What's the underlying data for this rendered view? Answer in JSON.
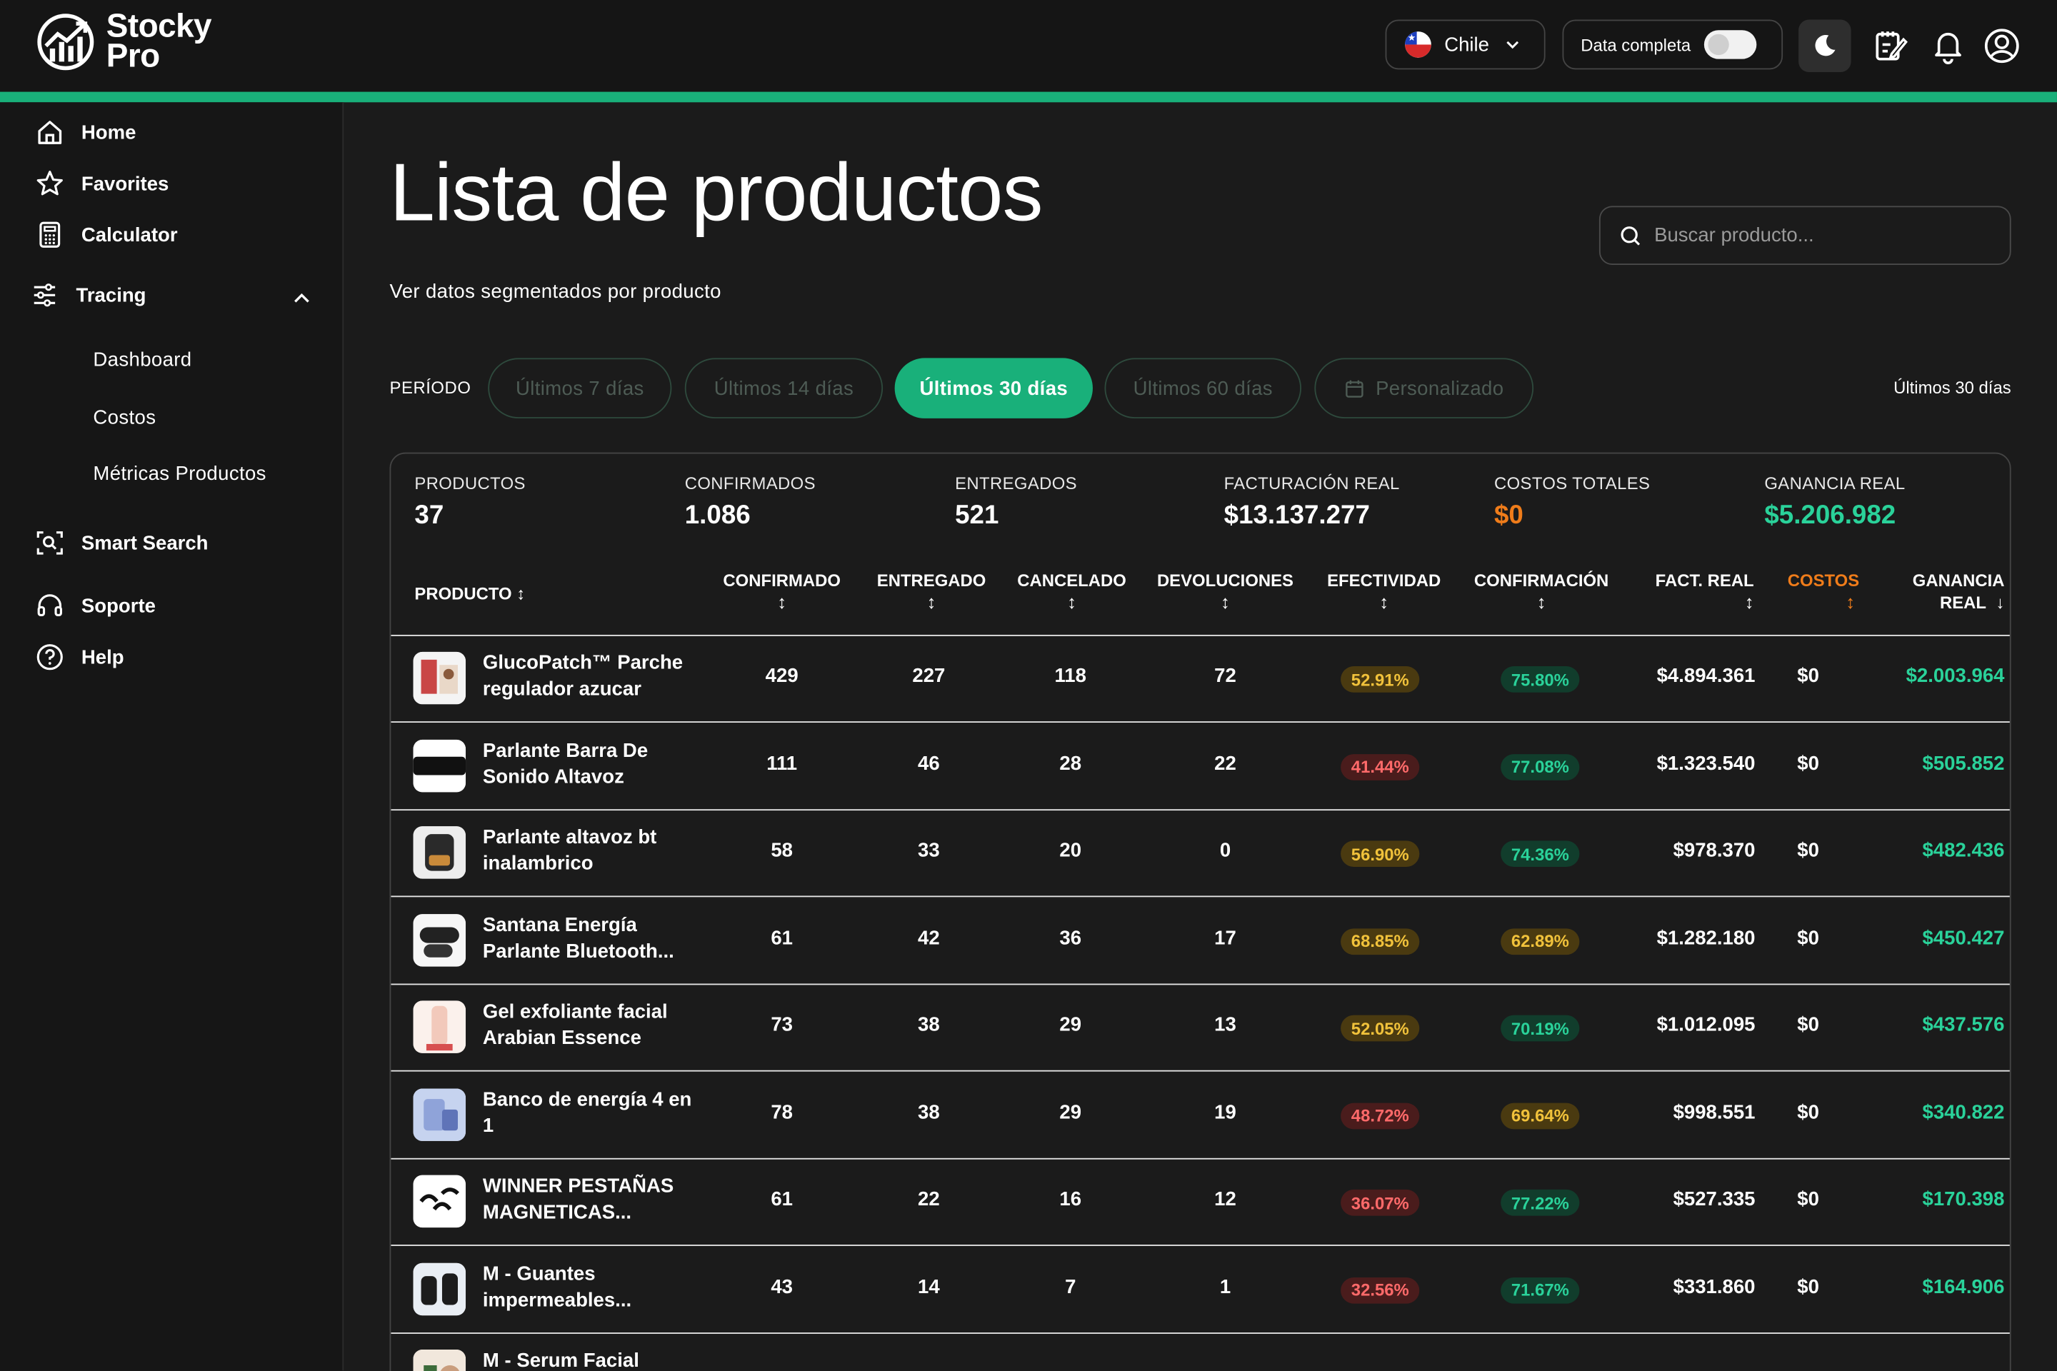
{
  "brand": {
    "line1": "Stocky",
    "line2": "Pro"
  },
  "topbar": {
    "country": "Chile",
    "data_toggle_label": "Data completa"
  },
  "sidebar": {
    "home": "Home",
    "favorites": "Favorites",
    "calculator": "Calculator",
    "tracing": "Tracing",
    "tracing_items": [
      "Dashboard",
      "Costos",
      "Métricas Productos"
    ],
    "smart_search": "Smart Search",
    "support": "Soporte",
    "help": "Help"
  },
  "main": {
    "title": "Lista de productos",
    "subtitle": "Ver datos segmentados por producto",
    "search_placeholder": "Buscar producto...",
    "period_label": "PERÍODO",
    "periods": [
      "Últimos 7 días",
      "Últimos 14 días",
      "Últimos 30 días",
      "Últimos 60 días",
      "Personalizado"
    ],
    "active_period": "Últimos 30 días",
    "period_right": "Últimos 30 días"
  },
  "stats": [
    {
      "label": "PRODUCTOS",
      "value": "37"
    },
    {
      "label": "CONFIRMADOS",
      "value": "1.086"
    },
    {
      "label": "ENTREGADOS",
      "value": "521"
    },
    {
      "label": "FACTURACIÓN REAL",
      "value": "$13.137.277"
    },
    {
      "label": "COSTOS TOTALES",
      "value": "$0"
    },
    {
      "label": "GANANCIA REAL",
      "value": "$5.206.982"
    }
  ],
  "table": {
    "headers": {
      "producto": "PRODUCTO",
      "confirmado": "CONFIRMADO",
      "entregado": "ENTREGADO",
      "cancelado": "CANCELADO",
      "devoluciones": "DEVOLUCIONES",
      "efectividad": "EFECTIVIDAD",
      "confirmacion": "CONFIRMACIÓN",
      "fact_real": "FACT. REAL",
      "costos": "COSTOS",
      "ganancia_1": "GANANCIA",
      "ganancia_2": "REAL",
      "sort": "↕",
      "sort_desc": "↓"
    },
    "rows": [
      {
        "name": "GlucoPatch™ Parche regulador azucar",
        "confirmado": "429",
        "entregado": "227",
        "cancelado": "118",
        "devoluciones": "72",
        "efectividad": "52.91%",
        "confirmacion": "75.80%",
        "fact": "$4.894.361",
        "costos": "$0",
        "ganancia": "$2.003.964"
      },
      {
        "name": "Parlante Barra De Sonido Altavoz",
        "confirmado": "111",
        "entregado": "46",
        "cancelado": "28",
        "devoluciones": "22",
        "efectividad": "41.44%",
        "confirmacion": "77.08%",
        "fact": "$1.323.540",
        "costos": "$0",
        "ganancia": "$505.852"
      },
      {
        "name": "Parlante altavoz bt inalambrico",
        "confirmado": "58",
        "entregado": "33",
        "cancelado": "20",
        "devoluciones": "0",
        "efectividad": "56.90%",
        "confirmacion": "74.36%",
        "fact": "$978.370",
        "costos": "$0",
        "ganancia": "$482.436"
      },
      {
        "name": "Santana Energía Parlante Bluetooth...",
        "confirmado": "61",
        "entregado": "42",
        "cancelado": "36",
        "devoluciones": "17",
        "efectividad": "68.85%",
        "confirmacion": "62.89%",
        "fact": "$1.282.180",
        "costos": "$0",
        "ganancia": "$450.427"
      },
      {
        "name": "Gel exfoliante facial Arabian Essence",
        "confirmado": "73",
        "entregado": "38",
        "cancelado": "29",
        "devoluciones": "13",
        "efectividad": "52.05%",
        "confirmacion": "70.19%",
        "fact": "$1.012.095",
        "costos": "$0",
        "ganancia": "$437.576"
      },
      {
        "name": "Banco de energía 4 en 1",
        "confirmado": "78",
        "entregado": "38",
        "cancelado": "29",
        "devoluciones": "19",
        "efectividad": "48.72%",
        "confirmacion": "69.64%",
        "fact": "$998.551",
        "costos": "$0",
        "ganancia": "$340.822"
      },
      {
        "name": "WINNER PESTAÑAS MAGNETICAS...",
        "confirmado": "61",
        "entregado": "22",
        "cancelado": "16",
        "devoluciones": "12",
        "efectividad": "36.07%",
        "confirmacion": "77.22%",
        "fact": "$527.335",
        "costos": "$0",
        "ganancia": "$170.398"
      },
      {
        "name": "M - Guantes impermeables...",
        "confirmado": "43",
        "entregado": "14",
        "cancelado": "7",
        "devoluciones": "1",
        "efectividad": "32.56%",
        "confirmacion": "71.67%",
        "fact": "$331.860",
        "costos": "$0",
        "ganancia": "$164.906"
      },
      {
        "name": "M - Serum Facial",
        "confirmado": "",
        "entregado": "",
        "cancelado": "",
        "devoluciones": "",
        "efectividad": "",
        "confirmacion": "",
        "fact": "",
        "costos": "",
        "ganancia": ""
      }
    ]
  },
  "colors": {
    "accent": "#19b07a",
    "gain": "#2ad29a",
    "cost": "#ef7c1a",
    "bg": "#1b1b1b"
  }
}
